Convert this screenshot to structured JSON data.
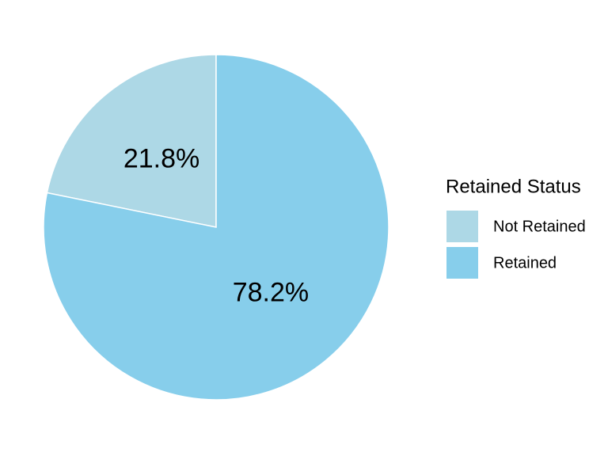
{
  "chart_data": {
    "type": "pie",
    "legend_title": "Retained Status",
    "categories": [
      "Not Retained",
      "Retained"
    ],
    "values": [
      21.8,
      78.2
    ],
    "value_labels": [
      "21.8%",
      "78.2%"
    ],
    "colors": [
      "#add8e6",
      "#87ceeb"
    ],
    "legend": "right"
  }
}
